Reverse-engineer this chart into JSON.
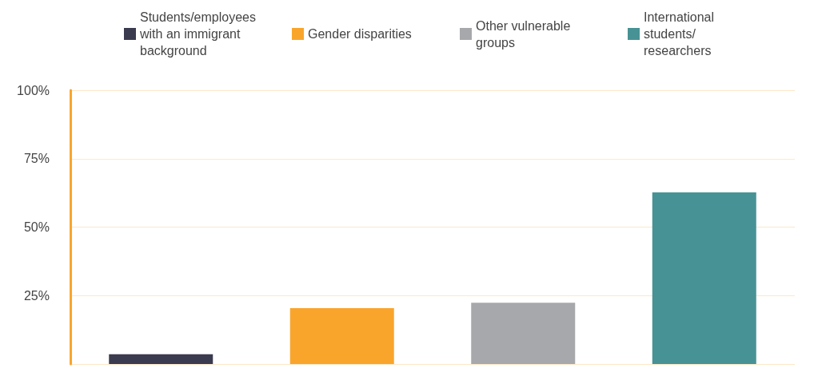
{
  "chart_data": {
    "type": "bar",
    "categories": [
      null,
      null,
      null,
      null
    ],
    "series": [
      {
        "name": "Students/employees with an immigrant background",
        "color": "#3b3b4f",
        "values": [
          3.6,
          null,
          null,
          null
        ]
      },
      {
        "name": "Gender disparities",
        "color": "#f9a52c",
        "values": [
          null,
          20.4,
          null,
          null
        ]
      },
      {
        "name": "Other vulnerable groups",
        "color": "#a7a8ab",
        "values": [
          null,
          null,
          22.4,
          null
        ]
      },
      {
        "name": "International students/ researchers",
        "color": "#479294",
        "values": [
          null,
          null,
          null,
          62.7
        ]
      }
    ],
    "ylim": [
      0,
      100
    ],
    "yticks": [
      {
        "value": 0,
        "label": null
      },
      {
        "value": 25,
        "label": "25%"
      },
      {
        "value": 50,
        "label": "50%"
      },
      {
        "value": 75,
        "label": "75%"
      },
      {
        "value": 100,
        "label": "100%"
      }
    ],
    "grid": "y",
    "legend": "top"
  }
}
